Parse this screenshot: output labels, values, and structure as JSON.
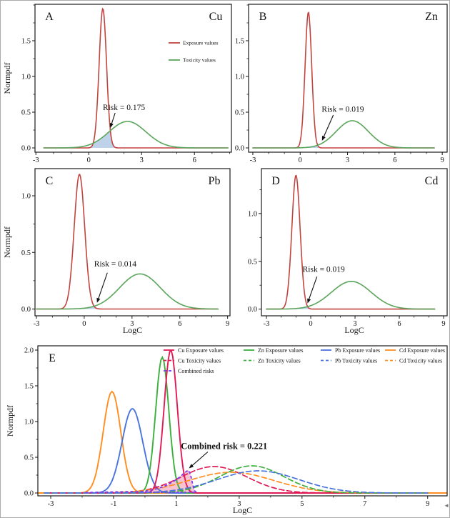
{
  "figure": {
    "background": "#ffffff",
    "border_color": "#ababab",
    "cursor_artifact": "◄"
  },
  "chart_data": [
    {
      "id": "panel-a",
      "type": "line",
      "corner_left": "A",
      "corner_right": "Cu",
      "ylabel": "Normpdf",
      "xlabel": null,
      "xlim": [
        -3.05,
        8.1
      ],
      "ylim": [
        -0.06,
        2.01
      ],
      "xticks": [
        -3,
        0,
        3,
        6
      ],
      "yticks": [
        0.0,
        0.5,
        1.0,
        1.5
      ],
      "ytick_labels": [
        "0.0",
        "0.5",
        "1.0",
        "1.5"
      ],
      "x_minor_step": 1,
      "y_minor_step": 0.25,
      "series": [
        {
          "name": "Exposure values",
          "color": "#c2443f",
          "dash": false,
          "mean": 0.8,
          "sd": 0.21,
          "peak": 1.95,
          "range": [
            -2.55,
            7.9
          ]
        },
        {
          "name": "Toxicity values",
          "color": "#5ba45b",
          "dash": false,
          "mean": 2.2,
          "sd": 1.05,
          "peak": 0.37,
          "range": [
            -2.55,
            7.9
          ]
        }
      ],
      "overlap_fill": "#b7cde8",
      "annotation": {
        "text": "Risk = 0.175",
        "value": 0.175,
        "bold": false,
        "tx": 2.0,
        "ty": 0.57,
        "sx": 1.5,
        "sy": 0.49,
        "ax": 1.22,
        "ay": 0.28
      },
      "legend": {
        "entries": [
          {
            "label": "Exposure values",
            "color": "#c2443f",
            "dash": false
          },
          {
            "label": "Toxicity values",
            "color": "#5ba45b",
            "dash": false
          }
        ]
      }
    },
    {
      "id": "panel-b",
      "type": "line",
      "corner_left": "B",
      "corner_right": "Zn",
      "ylabel": null,
      "xlabel": null,
      "xlim": [
        -3.27,
        9.31
      ],
      "ylim": [
        -0.06,
        2.01
      ],
      "xticks": [
        -3,
        0,
        3,
        6,
        9
      ],
      "yticks": [
        0.0,
        0.5,
        1.0,
        1.5
      ],
      "ytick_labels": [
        "0.0",
        "0.5",
        "1.0",
        "1.5"
      ],
      "x_minor_step": 1,
      "y_minor_step": 0.25,
      "series": [
        {
          "name": "Exposure values",
          "color": "#c2443f",
          "dash": false,
          "mean": 0.52,
          "sd": 0.21,
          "peak": 1.9,
          "range": [
            -3.0,
            8.5
          ]
        },
        {
          "name": "Toxicity values",
          "color": "#5ba45b",
          "dash": false,
          "mean": 3.3,
          "sd": 1.02,
          "peak": 0.38,
          "range": [
            -3.0,
            8.5
          ]
        }
      ],
      "overlap_fill": "#b7cde8",
      "annotation": {
        "text": "Risk = 0.019",
        "value": 0.019,
        "bold": false,
        "tx": 2.7,
        "ty": 0.545,
        "sx": 2.1,
        "sy": 0.46,
        "ax": 1.38,
        "ay": 0.1
      }
    },
    {
      "id": "panel-c",
      "type": "line",
      "corner_left": "C",
      "corner_right": "Pb",
      "ylabel": "Normpdf",
      "xlabel": "LogC",
      "xlim": [
        -3.09,
        9.15
      ],
      "ylim": [
        -0.06,
        1.24
      ],
      "xticks": [
        -3,
        0,
        3,
        6,
        9
      ],
      "yticks": [
        0.0,
        0.5,
        1.0
      ],
      "ytick_labels": [
        "0.0",
        "0.5",
        "1.0"
      ],
      "x_minor_step": 1,
      "y_minor_step": 0.25,
      "series": [
        {
          "name": "Exposure values",
          "color": "#c2443f",
          "dash": false,
          "mean": -0.3,
          "sd": 0.33,
          "peak": 1.19,
          "range": [
            -3.0,
            8.4
          ]
        },
        {
          "name": "Toxicity values",
          "color": "#5ba45b",
          "dash": false,
          "mean": 3.5,
          "sd": 1.28,
          "peak": 0.31,
          "range": [
            -3.0,
            8.4
          ]
        }
      ],
      "overlap_fill": "#b7cde8",
      "annotation": {
        "text": "Risk = 0.014",
        "value": 0.014,
        "bold": false,
        "tx": 1.95,
        "ty": 0.4,
        "sx": 1.45,
        "sy": 0.32,
        "ax": 0.8,
        "ay": 0.055
      }
    },
    {
      "id": "panel-d",
      "type": "line",
      "corner_left": "D",
      "corner_right": "Cd",
      "ylabel": null,
      "xlabel": "LogC",
      "xlim": [
        -3.34,
        9.24
      ],
      "ylim": [
        -0.07,
        1.47
      ],
      "xticks": [
        -3,
        0,
        3,
        6,
        9
      ],
      "yticks": [
        0.0,
        0.5,
        1.0
      ],
      "ytick_labels": [
        "0.0",
        "0.5",
        "1.0"
      ],
      "x_minor_step": 1,
      "y_minor_step": 0.25,
      "series": [
        {
          "name": "Exposure values",
          "color": "#c2443f",
          "dash": false,
          "mean": -1.0,
          "sd": 0.28,
          "peak": 1.4,
          "range": [
            -3.0,
            8.4
          ]
        },
        {
          "name": "Toxicity values",
          "color": "#5ba45b",
          "dash": false,
          "mean": 2.75,
          "sd": 1.35,
          "peak": 0.29,
          "range": [
            -3.0,
            8.4
          ]
        }
      ],
      "overlap_fill": "#b7cde8",
      "annotation": {
        "text": "Risk = 0.019",
        "value": 0.019,
        "bold": false,
        "tx": 0.88,
        "ty": 0.42,
        "sx": 0.42,
        "sy": 0.34,
        "ax": -0.22,
        "ay": 0.06
      }
    },
    {
      "id": "panel-e",
      "type": "line",
      "corner_left": "E",
      "corner_right": null,
      "ylabel": "Normpdf",
      "xlabel": "LogC",
      "xlim": [
        -3.41,
        9.62
      ],
      "ylim": [
        -0.04,
        2.06
      ],
      "xticks": [
        -3,
        -1,
        1,
        3,
        5,
        7,
        9
      ],
      "yticks": [
        0.0,
        0.5,
        1.0,
        1.5,
        2.0
      ],
      "ytick_labels": [
        "0.0",
        "0.5",
        "1.0",
        "1.5",
        "2.0"
      ],
      "x_minor_step": 1,
      "y_minor_step": 0.25,
      "series": [
        {
          "name": "Cd Exposure values",
          "color": "#ff8d1f",
          "dash": false,
          "mean": -1.05,
          "sd": 0.28,
          "peak": 1.42,
          "range": [
            -3.41,
            9.62
          ]
        },
        {
          "name": "Pb Exposure values",
          "color": "#4a74dd",
          "dash": false,
          "mean": -0.4,
          "sd": 0.33,
          "peak": 1.18,
          "range": [
            -3.2,
            9.0
          ]
        },
        {
          "name": "Zn Exposure values",
          "color": "#3cb03c",
          "dash": false,
          "mean": 0.55,
          "sd": 0.21,
          "peak": 1.9,
          "range": [
            -3.2,
            9.0
          ]
        },
        {
          "name": "Cu Exposure values",
          "color": "#e01a55",
          "dash": false,
          "mean": 0.82,
          "sd": 0.21,
          "peak": 2.0,
          "range": [
            -3.2,
            9.0
          ]
        },
        {
          "name": "Cu Toxicity values",
          "color": "#e01a55",
          "dash": true,
          "mean": 2.2,
          "sd": 1.05,
          "peak": 0.37,
          "range": [
            -3.2,
            9.0
          ]
        },
        {
          "name": "Cd Toxicity values",
          "color": "#ff8d1f",
          "dash": true,
          "mean": 2.75,
          "sd": 1.35,
          "peak": 0.29,
          "range": [
            -3.2,
            9.0
          ]
        },
        {
          "name": "Zn Toxicity values",
          "color": "#3cb03c",
          "dash": true,
          "mean": 3.4,
          "sd": 1.02,
          "peak": 0.38,
          "range": [
            -3.2,
            9.0
          ]
        },
        {
          "name": "Pb Toxicity values",
          "color": "#4a74dd",
          "dash": true,
          "mean": 3.6,
          "sd": 1.3,
          "peak": 0.31,
          "range": [
            -3.2,
            9.0
          ]
        }
      ],
      "combined_region": {
        "name": "Combined risks",
        "stroke": "#7d3cf0",
        "fill": "#f5b3c5",
        "points": [
          [
            -1.9,
            0.006
          ],
          [
            -1.4,
            0.012
          ],
          [
            -0.9,
            0.016
          ],
          [
            -0.4,
            0.02
          ],
          [
            0.0,
            0.024
          ],
          [
            0.3,
            0.05
          ],
          [
            0.6,
            0.09
          ],
          [
            0.9,
            0.16
          ],
          [
            1.1,
            0.22
          ],
          [
            1.25,
            0.28
          ],
          [
            1.38,
            0.32
          ],
          [
            1.45,
            0.26
          ],
          [
            1.52,
            0.12
          ],
          [
            1.58,
            0.03
          ],
          [
            1.65,
            0.006
          ]
        ],
        "baseline": [
          [
            0.0,
            0.008
          ],
          [
            1.62,
            0.008
          ]
        ]
      },
      "annotation": {
        "text": "Combined risk = 0.221",
        "value": 0.221,
        "bold": true,
        "tx": 2.52,
        "ty": 0.655,
        "sx": 2.0,
        "sy": 0.575,
        "ax": 1.4,
        "ay": 0.345
      },
      "legend": {
        "entries": [
          {
            "label": "Cu Exposure values",
            "color": "#e01a55",
            "dash": false,
            "col": 0,
            "row": 0
          },
          {
            "label": "Cu Toxicity values",
            "color": "#e01a55",
            "dash": true,
            "col": 0,
            "row": 1
          },
          {
            "label": "Combined risks",
            "color": "#7d3cf0",
            "dash": true,
            "col": 0,
            "row": 2
          },
          {
            "label": "Zn Exposure values",
            "color": "#3cb03c",
            "dash": false,
            "col": 1,
            "row": 0
          },
          {
            "label": "Zn Toxicity values",
            "color": "#3cb03c",
            "dash": true,
            "col": 1,
            "row": 1
          },
          {
            "label": "Pb Exposure values",
            "color": "#4a74dd",
            "dash": false,
            "col": 2,
            "row": 0
          },
          {
            "label": "Pb Toxicity values",
            "color": "#4a74dd",
            "dash": true,
            "col": 2,
            "row": 1
          },
          {
            "label": "Cd Exposure values",
            "color": "#ff8d1f",
            "dash": false,
            "col": 3,
            "row": 0
          },
          {
            "label": "Cd Toxicity values",
            "color": "#ff8d1f",
            "dash": true,
            "col": 3,
            "row": 1
          }
        ]
      }
    }
  ]
}
